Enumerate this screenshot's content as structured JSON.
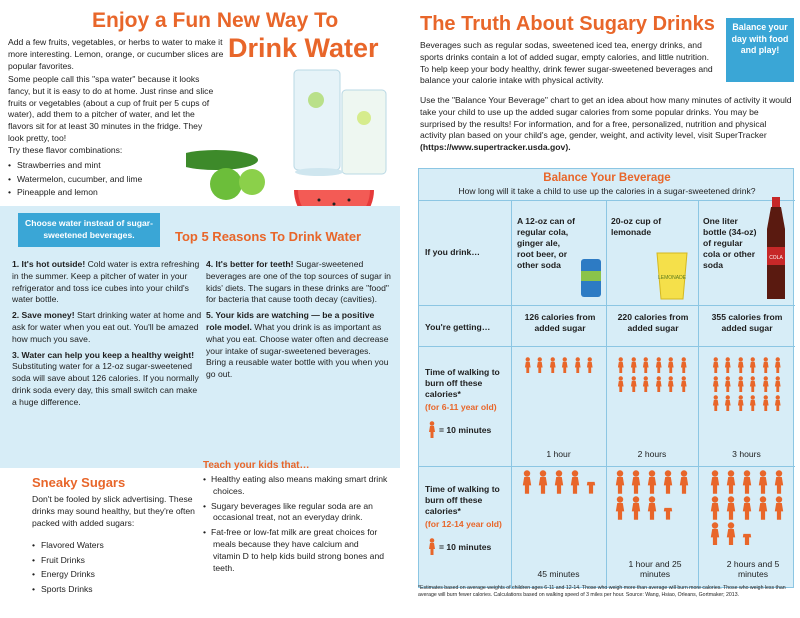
{
  "left": {
    "title_line1": "Enjoy a Fun New Way To",
    "title_line2": "Drink Water",
    "intro_a": "Add a few fruits, vegetables, or herbs to water to make it more interesting. Lemon, orange, or cucumber slices are popular favorites.",
    "intro_b": "Some people call this \"spa water\" because it looks fancy, but it is easy to do at home. Just rinse and slice fruits or vegetables (about a cup of fruit per 5 cups of water), add them to a pitcher of water, and let the flavors sit for at least 30 minutes in the fridge. They look pretty, too!",
    "combos_title": "Try these flavor combinations:",
    "combos": [
      "Strawberries and mint",
      "Watermelon, cucumber, and lime",
      "Pineapple and lemon"
    ],
    "tip_box": "Choose water instead of sugar-sweetened beverages.",
    "reasons_title": "Top 5 Reasons To Drink Water",
    "reasons_col1": [
      {
        "head": "1. It's hot outside!",
        "body": " Cold water is extra refreshing in the summer. Keep a pitcher of water in your refrigerator and toss ice cubes into your child's water bottle."
      },
      {
        "head": "2. Save money!",
        "body": " Start drinking water at home and ask for water when you eat out. You'll be amazed how much you save."
      },
      {
        "head": "3. Water can help you keep a healthy weight!",
        "body": " Substituting water for a 12-oz sugar-sweetened soda will save about 126 calories. If you normally drink soda every day, this small switch can make a huge difference."
      }
    ],
    "reasons_col2": [
      {
        "head": "4. It's better for teeth!",
        "body": " Sugar-sweetened beverages are one of the top sources of sugar in kids' diets. The sugars in these drinks are \"food\" for bacteria that cause tooth decay (cavities)."
      },
      {
        "head": "5. Your kids are watching — be a positive role model.",
        "body": " What you drink is as important as what you eat. Choose water often and decrease your intake of sugar-sweetened beverages. Bring a reusable water bottle with you when you go out."
      }
    ],
    "sneaky_title": "Sneaky Sugars",
    "sneaky_text": "Don't be fooled by slick advertising. These drinks may sound healthy, but they're often packed with added sugars:",
    "sneaky_list": [
      "Flavored Waters",
      "Fruit Drinks",
      "Energy Drinks",
      "Sports Drinks"
    ],
    "teach_title": "Teach your kids that…",
    "teach_list": [
      "Healthy eating also means making smart drink choices.",
      "Sugary beverages like regular soda are an occasional treat, not an everyday drink.",
      "Fat-free or low-fat milk are great choices for meals because they have calcium and vitamin D to help kids build strong bones and teeth."
    ]
  },
  "right": {
    "title": "The Truth About Sugary Drinks",
    "badge": "Balance your day with food and play!",
    "para1": "Beverages such as regular sodas, sweetened iced tea, energy drinks, and sports drinks contain a lot of added sugar, empty calories, and little nutrition. To help keep your body healthy, drink fewer sugar-sweetened beverages and balance your calorie intake with physical activity.",
    "para2": "Use the \"Balance Your Beverage\" chart to get an idea about how many minutes of activity it would take your child to use up the added sugar calories from some popular drinks. You may be surprised by the results! For information, and for a free, personalized, nutrition and physical activity plan based on your child's age, gender, weight, and activity level, visit SuperTracker",
    "para2_link": "(https://www.supertracker.usda.gov).",
    "chart_title": "Balance Your Beverage",
    "chart_sub": "How long will it take a child to use up the calories in a sugar-sweetened drink?",
    "if_you_drink": "If you drink…",
    "youre_getting": "You're getting…",
    "row1_label": "Time of walking to burn off these calories*",
    "row1_age": "(for 6-11 year old)",
    "row2_label": "Time of walking to burn off these calories*",
    "row2_age": "(for 12-14 year old)",
    "equals": "= 10 minutes",
    "cola_label": "COLA",
    "lemonade_label": "LEMONADE",
    "drinks": [
      {
        "name": "A 12-oz can of regular cola, ginger ale, root beer, or other soda",
        "calories": "126 calories from added sugar",
        "time_young": "1 hour",
        "time_old": "45 minutes"
      },
      {
        "name": "20-oz cup of lemonade",
        "calories": "220 calories from added sugar",
        "time_young": "2 hours",
        "time_old": "1 hour and 25 minutes"
      },
      {
        "name": "One liter bottle (34-oz) of regular cola or other soda",
        "calories": "355 calories from added sugar",
        "time_young": "3 hours",
        "time_old": "2 hours and 5 minutes"
      }
    ],
    "footnote": "*Estimates based on average weights of children ages 6-11 and 12-14. Those who weigh more than average will burn more calories. Those who weigh less than average will burn fewer calories. Calculations based on walking speed of 3 miles per hour. Source: Wang, Hsiao, Orleans, Gortmaker; 2013."
  },
  "chart_data": {
    "type": "table",
    "title": "Balance Your Beverage",
    "columns": [
      "A 12-oz can of regular cola, ginger ale, root beer, or other soda",
      "20-oz cup of lemonade",
      "One liter bottle (34-oz) of regular cola or other soda"
    ],
    "calories": [
      126,
      220,
      355
    ],
    "walking_figures_6_11": [
      6,
      12,
      18
    ],
    "walking_figures_12_14": [
      4.5,
      8.5,
      12.5
    ],
    "minutes_per_figure": 10
  },
  "colors": {
    "accent": "#e8662a",
    "blue": "#3aa6d6",
    "band": "#d7edf7"
  }
}
